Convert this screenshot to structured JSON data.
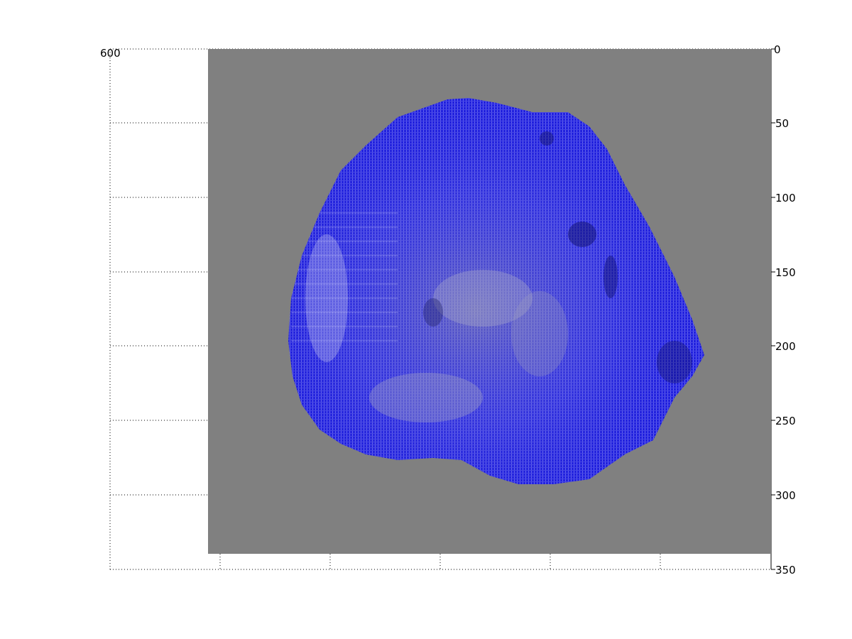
{
  "figure": {
    "background_color": "#ffffff",
    "panel_color": "#808080",
    "surface_color": "#1c1cdc",
    "surface_highlight_color": "#c8c8e6",
    "grid_color": "#000000",
    "y_axis": {
      "direction": "reversed",
      "range": [
        0,
        350
      ],
      "tick_labels": [
        "0",
        "50",
        "100",
        "150",
        "200",
        "250",
        "300",
        "350"
      ]
    },
    "x_axis": {
      "direction": "reversed",
      "left_label": "600"
    },
    "grid": true
  }
}
